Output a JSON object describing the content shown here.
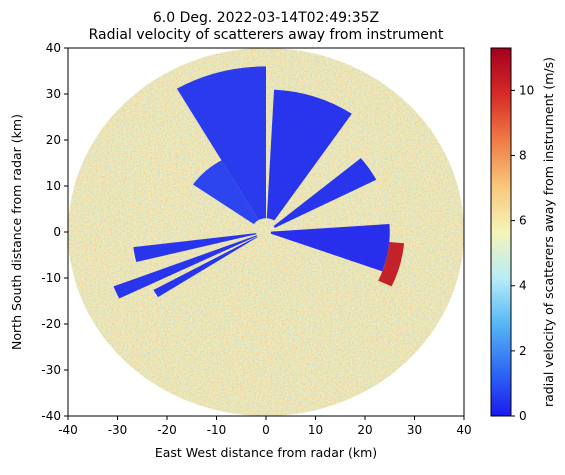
{
  "chart_data": {
    "type": "heatmap",
    "title_line1": "6.0 Deg. 2022-03-14T02:49:35Z",
    "title_line2": "Radial velocity of scatterers away from instrument",
    "xlabel": "East West distance from radar (km)",
    "ylabel": "North South distance from radar (km)",
    "xlim": [
      -40,
      40
    ],
    "ylim": [
      -40,
      40
    ],
    "xticks": [
      -40,
      -30,
      -20,
      -10,
      0,
      10,
      20,
      30,
      40
    ],
    "yticks": [
      -40,
      -30,
      -20,
      -10,
      0,
      10,
      20,
      30,
      40
    ],
    "max_range_km": 40,
    "colorbar": {
      "label": "radial velocity of scatterers away from instrument (m/s)",
      "vmin": 0,
      "vmax": 11.3,
      "ticks": [
        0,
        2,
        4,
        6,
        8,
        10
      ],
      "colormap": "jet-like",
      "colors": [
        "#1a1aee",
        "#2f6bf5",
        "#55b7f5",
        "#b8ecf7",
        "#f4f4b8",
        "#f8c77a",
        "#f07a45",
        "#d62a26",
        "#a3001f"
      ]
    },
    "regions": [
      {
        "name": "North sector",
        "from_deg": 3,
        "to_deg": 34,
        "rmin": 3,
        "rmax": 31,
        "value": 0.3
      },
      {
        "name": "North-west sector",
        "from_deg": 330,
        "to_deg": 360,
        "rmin": 3,
        "rmax": 36,
        "value": 0.4
      },
      {
        "name": "North-west near",
        "from_deg": 305,
        "to_deg": 330,
        "rmin": 3,
        "rmax": 18,
        "value": 0.6
      },
      {
        "name": "North-east band",
        "from_deg": 50,
        "to_deg": 63,
        "rmin": 2,
        "rmax": 25,
        "value": 0.3
      },
      {
        "name": "East band",
        "from_deg": 86,
        "to_deg": 110,
        "rmin": 1,
        "rmax": 25,
        "value": 0.2
      },
      {
        "name": "West ray",
        "from_deg": 256,
        "to_deg": 263,
        "rmin": 2,
        "rmax": 27,
        "value": 0.3
      },
      {
        "name": "West-south-west ray",
        "from_deg": 244,
        "to_deg": 249,
        "rmin": 2,
        "rmax": 33,
        "value": 0.3
      },
      {
        "name": "South-west ray",
        "from_deg": 237,
        "to_deg": 241,
        "rmin": 2,
        "rmax": 26,
        "value": 0.3
      },
      {
        "name": "East edge",
        "from_deg": 95,
        "to_deg": 115,
        "rmin": 25,
        "rmax": 28,
        "value": 10.5
      }
    ]
  }
}
